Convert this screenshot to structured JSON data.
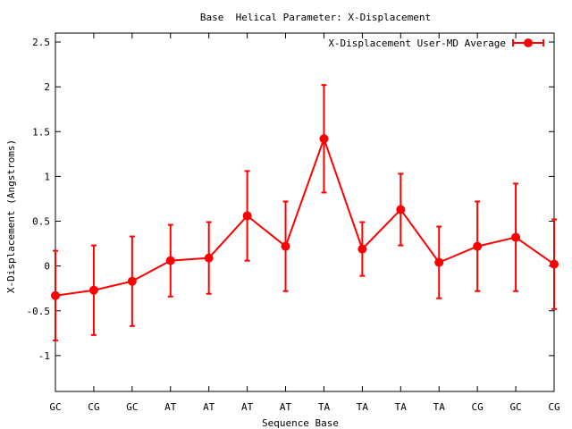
{
  "chart_data": {
    "type": "line",
    "title": "Base  Helical Parameter: X-Displacement",
    "xlabel": "Sequence Base",
    "ylabel": "X-Displacement (Angstroms)",
    "categories": [
      "GC",
      "CG",
      "GC",
      "AT",
      "AT",
      "AT",
      "AT",
      "TA",
      "TA",
      "TA",
      "TA",
      "CG",
      "GC",
      "CG"
    ],
    "ylim": [
      -1.4,
      2.6
    ],
    "yticks": [
      {
        "value": 2.5,
        "label": "2.5"
      },
      {
        "value": 2,
        "label": "2"
      },
      {
        "value": 1.5,
        "label": "1.5"
      },
      {
        "value": 1,
        "label": "1"
      },
      {
        "value": 0.5,
        "label": "0.5"
      },
      {
        "value": 0,
        "label": "0"
      },
      {
        "value": -0.5,
        "label": "-0.5"
      },
      {
        "value": -1,
        "label": "-1"
      }
    ],
    "grid": false,
    "legend_position": "top-right",
    "series": [
      {
        "name": "X-Displacement User-MD Average",
        "color": "#ff0000",
        "values": [
          -0.33,
          -0.27,
          -0.17,
          0.06,
          0.09,
          0.56,
          0.22,
          1.42,
          0.19,
          0.63,
          0.04,
          0.22,
          0.32,
          0.02
        ],
        "errors": [
          0.5,
          0.5,
          0.5,
          0.4,
          0.4,
          0.5,
          0.5,
          0.6,
          0.3,
          0.4,
          0.4,
          0.5,
          0.6,
          0.5
        ]
      }
    ]
  }
}
